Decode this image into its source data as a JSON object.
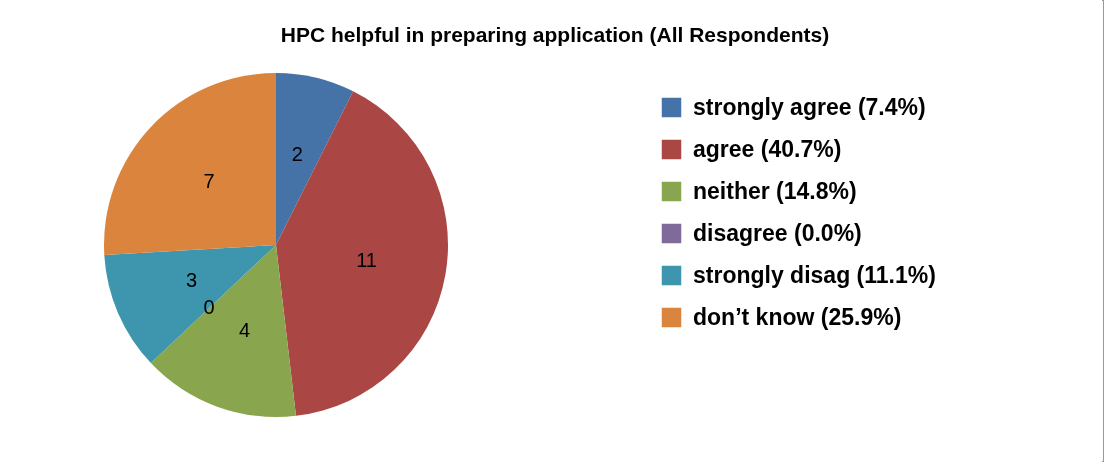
{
  "chart_data": {
    "type": "pie",
    "title": "HPC helpful in preparing application (All Respondents)",
    "categories": [
      "strongly agree (7.4%)",
      "agree (40.7%)",
      "neither (14.8%)",
      "disagree (0.0%)",
      "strongly disag (11.1%)",
      "don’t know (25.9%)"
    ],
    "values": [
      2,
      11,
      4,
      0,
      3,
      7
    ],
    "colors": [
      "#4572a7",
      "#aa4643",
      "#89a54e",
      "#80699b",
      "#3d96ae",
      "#db843d"
    ],
    "value_labels": [
      "2",
      "11",
      "4",
      "0",
      "3",
      "7"
    ],
    "legend": "right"
  }
}
